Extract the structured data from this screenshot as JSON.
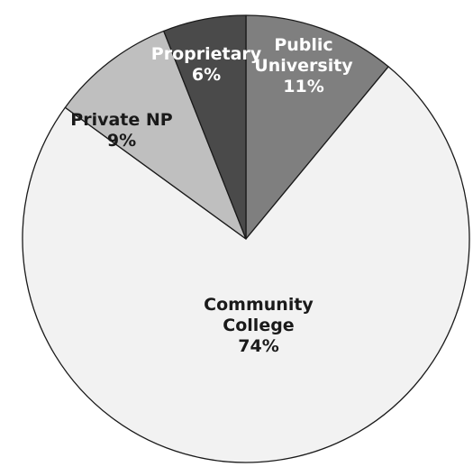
{
  "chart_data": {
    "type": "pie",
    "title": "",
    "slices": [
      {
        "name": "Public University",
        "lines": [
          "Public",
          "University"
        ],
        "value": 11,
        "value_label": "11%",
        "color": "#7f7f7f",
        "text_color": "#ffffff"
      },
      {
        "name": "Community College",
        "lines": [
          "Community",
          "College"
        ],
        "value": 74,
        "value_label": "74%",
        "color": "#f2f2f2",
        "text_color": "#1a1a1a"
      },
      {
        "name": "Private NP",
        "lines": [
          "Private NP"
        ],
        "value": 9,
        "value_label": "9%",
        "color": "#bfbfbf",
        "text_color": "#1a1a1a"
      },
      {
        "name": "Proprietary",
        "lines": [
          "Proprietary"
        ],
        "value": 6,
        "value_label": "6%",
        "color": "#4a4a4a",
        "text_color": "#ffffff"
      }
    ],
    "start_angle": "12 o'clock",
    "direction": "clockwise",
    "legend": "none"
  }
}
